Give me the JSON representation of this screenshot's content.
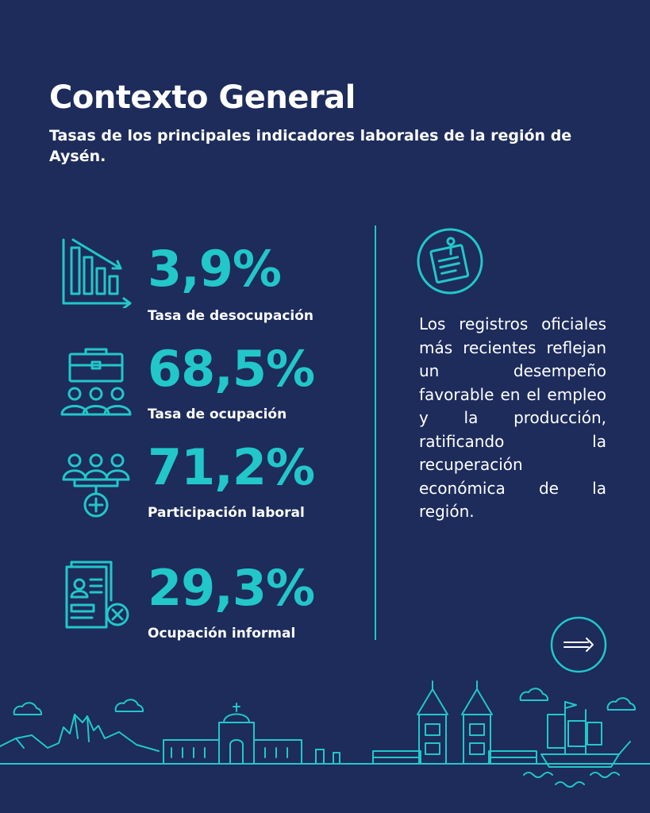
{
  "header": {
    "title": "Contexto General",
    "subtitle": "Tasas de los principales indicadores laborales de la región de Aysén."
  },
  "stats": [
    {
      "value": "3,9%",
      "label": "Tasa de desocupación",
      "icon": "declining-bar-chart-icon"
    },
    {
      "value": "68,5%",
      "label": "Tasa de ocupación",
      "icon": "briefcase-people-icon"
    },
    {
      "value": "71,2%",
      "label": "Participación laboral",
      "icon": "people-add-icon"
    },
    {
      "value": "29,3%",
      "label": "Ocupación informal",
      "icon": "document-reject-icon"
    }
  ],
  "description": {
    "icon": "pinned-note-icon",
    "text": "Los registros oficiales más recientes reflejan un desempeño favorable en el empleo y la producción, ratificando la recuperación económica de la región."
  },
  "next_button": {
    "icon": "arrow-right-icon"
  },
  "colors": {
    "background": "#1d2c5b",
    "accent": "#22c7c9",
    "text": "#ffffff"
  }
}
